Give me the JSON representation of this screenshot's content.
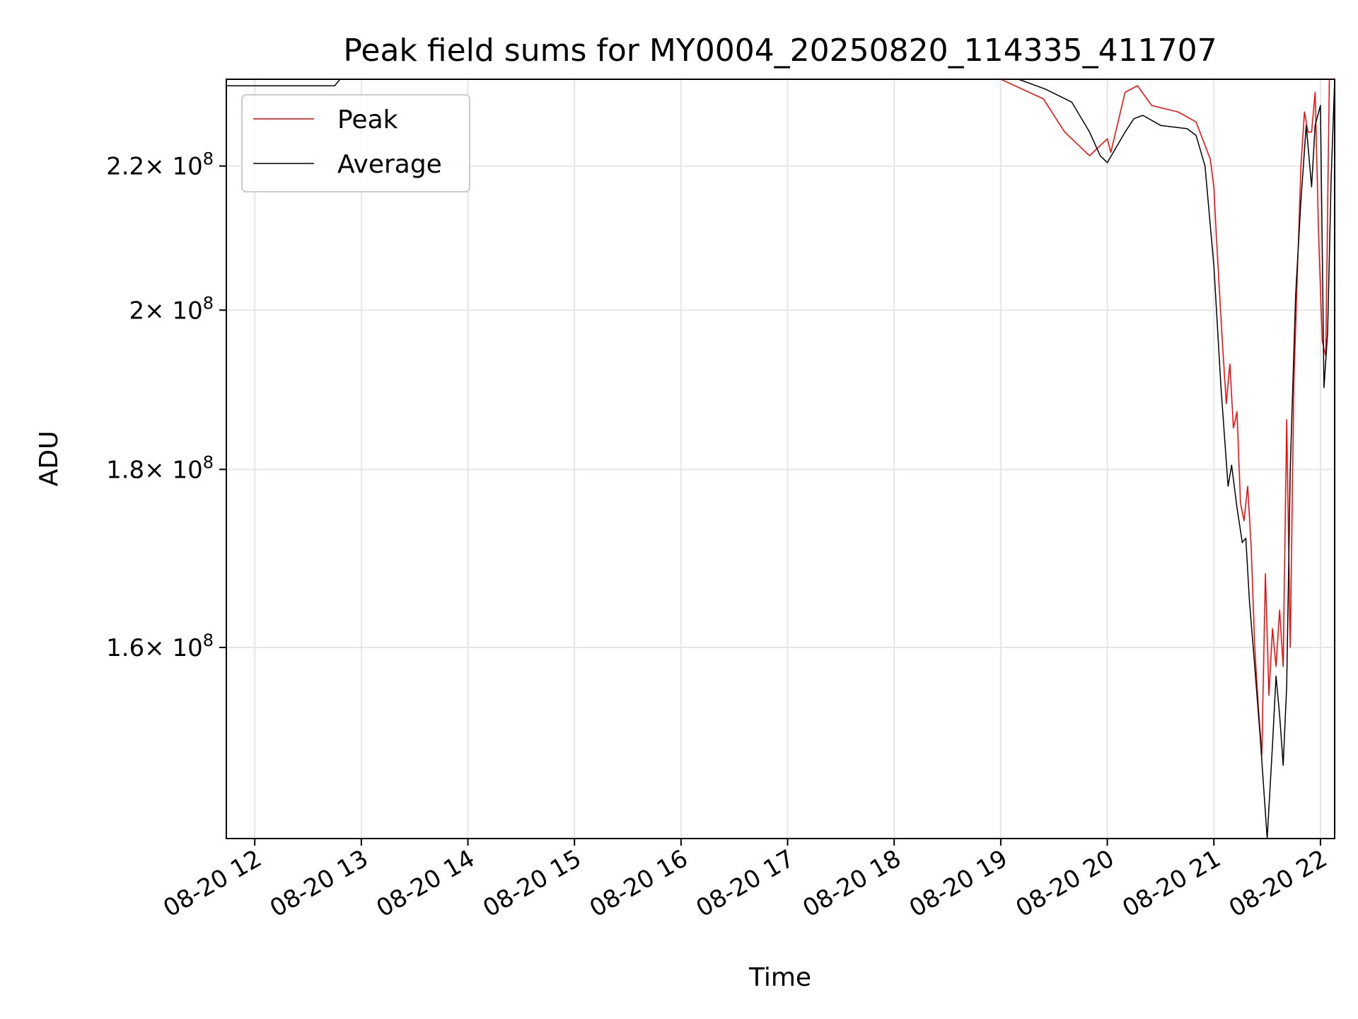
{
  "chart_data": {
    "type": "line",
    "title": "Peak field sums for MY0004_20250820_114335_411707",
    "xlabel": "Time",
    "ylabel": "ADU",
    "y_scale": "log",
    "xlim": [
      "2025-08-20 11:44",
      "2025-08-20 22:08"
    ],
    "ylim": [
      141000000,
      233000000
    ],
    "grid": true,
    "legend": "top-left",
    "x_ticks": [
      {
        "value": "2025-08-20 12:00",
        "label": "08-20 12"
      },
      {
        "value": "2025-08-20 13:00",
        "label": "08-20 13"
      },
      {
        "value": "2025-08-20 14:00",
        "label": "08-20 14"
      },
      {
        "value": "2025-08-20 15:00",
        "label": "08-20 15"
      },
      {
        "value": "2025-08-20 16:00",
        "label": "08-20 16"
      },
      {
        "value": "2025-08-20 17:00",
        "label": "08-20 17"
      },
      {
        "value": "2025-08-20 18:00",
        "label": "08-20 18"
      },
      {
        "value": "2025-08-20 19:00",
        "label": "08-20 19"
      },
      {
        "value": "2025-08-20 20:00",
        "label": "08-20 20"
      },
      {
        "value": "2025-08-20 21:00",
        "label": "08-20 21"
      },
      {
        "value": "2025-08-20 22:00",
        "label": "08-20 22"
      }
    ],
    "y_ticks": [
      {
        "value": 160000000,
        "mantissa": "1.6",
        "base": "× 10",
        "exp": "8"
      },
      {
        "value": 180000000,
        "mantissa": "1.8",
        "base": "× 10",
        "exp": "8"
      },
      {
        "value": 200000000,
        "mantissa": "2",
        "base": "× 10",
        "exp": "8"
      },
      {
        "value": 220000000,
        "mantissa": "2.2",
        "base": "× 10",
        "exp": "8"
      }
    ],
    "series": [
      {
        "name": "Peak",
        "color": "#ff0000",
        "x": [
          "2025-08-20 19:00",
          "2025-08-20 19:24",
          "2025-08-20 19:36",
          "2025-08-20 19:50",
          "2025-08-20 20:00",
          "2025-08-20 20:02",
          "2025-08-20 20:10",
          "2025-08-20 20:17",
          "2025-08-20 20:25",
          "2025-08-20 20:40",
          "2025-08-20 20:50",
          "2025-08-20 20:58",
          "2025-08-20 21:00",
          "2025-08-20 21:01",
          "2025-08-20 21:03",
          "2025-08-20 21:05",
          "2025-08-20 21:07",
          "2025-08-20 21:09",
          "2025-08-20 21:11",
          "2025-08-20 21:13",
          "2025-08-20 21:15",
          "2025-08-20 21:17",
          "2025-08-20 21:19",
          "2025-08-20 21:21",
          "2025-08-20 21:23",
          "2025-08-20 21:25",
          "2025-08-20 21:27",
          "2025-08-20 21:29",
          "2025-08-20 21:31",
          "2025-08-20 21:33",
          "2025-08-20 21:35",
          "2025-08-20 21:37",
          "2025-08-20 21:39",
          "2025-08-20 21:41",
          "2025-08-20 21:43",
          "2025-08-20 21:45",
          "2025-08-20 21:47",
          "2025-08-20 21:49",
          "2025-08-20 21:51",
          "2025-08-20 21:53",
          "2025-08-20 21:55",
          "2025-08-20 21:57",
          "2025-08-20 21:59",
          "2025-08-20 22:01",
          "2025-08-20 22:03",
          "2025-08-20 22:05"
        ],
        "values": [
          233000000,
          230000000,
          225000000,
          221500000,
          224000000,
          222000000,
          231000000,
          232000000,
          229000000,
          228000000,
          226500000,
          221000000,
          217000000,
          212000000,
          203000000,
          195000000,
          188000000,
          193000000,
          185000000,
          187000000,
          176000000,
          174000000,
          178000000,
          171000000,
          160000000,
          154000000,
          149000000,
          168000000,
          155000000,
          162000000,
          158000000,
          164000000,
          158000000,
          186000000,
          160000000,
          190000000,
          205000000,
          220000000,
          228000000,
          225000000,
          225000000,
          231000000,
          210000000,
          196000000,
          194000000,
          233000000
        ]
      },
      {
        "name": "Average",
        "color": "#000000",
        "x": [
          "2025-08-20 11:44",
          "2025-08-20 12:45",
          "2025-08-20 12:48",
          "2025-08-20 18:00",
          "2025-08-20 19:10",
          "2025-08-20 19:25",
          "2025-08-20 19:40",
          "2025-08-20 19:50",
          "2025-08-20 19:56",
          "2025-08-20 20:00",
          "2025-08-20 20:10",
          "2025-08-20 20:15",
          "2025-08-20 20:20",
          "2025-08-20 20:30",
          "2025-08-20 20:45",
          "2025-08-20 20:50",
          "2025-08-20 20:55",
          "2025-08-20 21:00",
          "2025-08-20 21:04",
          "2025-08-20 21:08",
          "2025-08-20 21:10",
          "2025-08-20 21:13",
          "2025-08-20 21:16",
          "2025-08-20 21:18",
          "2025-08-20 21:20",
          "2025-08-20 21:23",
          "2025-08-20 21:26",
          "2025-08-20 21:30",
          "2025-08-20 21:33",
          "2025-08-20 21:35",
          "2025-08-20 21:37",
          "2025-08-20 21:39",
          "2025-08-20 21:41",
          "2025-08-20 21:43",
          "2025-08-20 21:46",
          "2025-08-20 21:49",
          "2025-08-20 21:52",
          "2025-08-20 21:55",
          "2025-08-20 21:57",
          "2025-08-20 22:00",
          "2025-08-20 22:02",
          "2025-08-20 22:04",
          "2025-08-20 22:06",
          "2025-08-20 22:08"
        ],
        "values": [
          232000000,
          232000000,
          233000000,
          233000000,
          233000000,
          231500000,
          229500000,
          225000000,
          221500000,
          220500000,
          225000000,
          227000000,
          227500000,
          226000000,
          225500000,
          224500000,
          220000000,
          206000000,
          190000000,
          178000000,
          180500000,
          175500000,
          171500000,
          172000000,
          165000000,
          158000000,
          151000000,
          141000000,
          150000000,
          157000000,
          153000000,
          148000000,
          156000000,
          180000000,
          202000000,
          215000000,
          226000000,
          217000000,
          226000000,
          229000000,
          190000000,
          197000000,
          218000000,
          233000000
        ]
      }
    ]
  }
}
